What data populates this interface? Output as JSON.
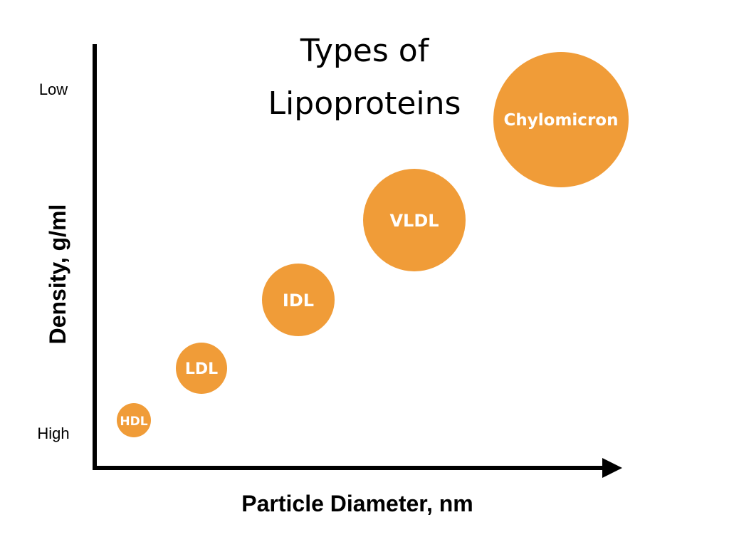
{
  "title": {
    "line1": "Types of",
    "line2": "Lipoproteins"
  },
  "axes": {
    "x_label": "Particle Diameter, nm",
    "y_label": "Density, g/ml",
    "y_top_label": "Low",
    "y_bottom_label": "High"
  },
  "particles": [
    {
      "label": "HDL",
      "order": 1
    },
    {
      "label": "LDL",
      "order": 2
    },
    {
      "label": "IDL",
      "order": 3
    },
    {
      "label": "VLDL",
      "order": 4
    },
    {
      "label": "Chylomicron",
      "order": 5
    }
  ],
  "colors": {
    "bubble": "#F09C38",
    "text": "#000000",
    "bubble_text": "#FFFFFF",
    "axis": "#000000"
  }
}
